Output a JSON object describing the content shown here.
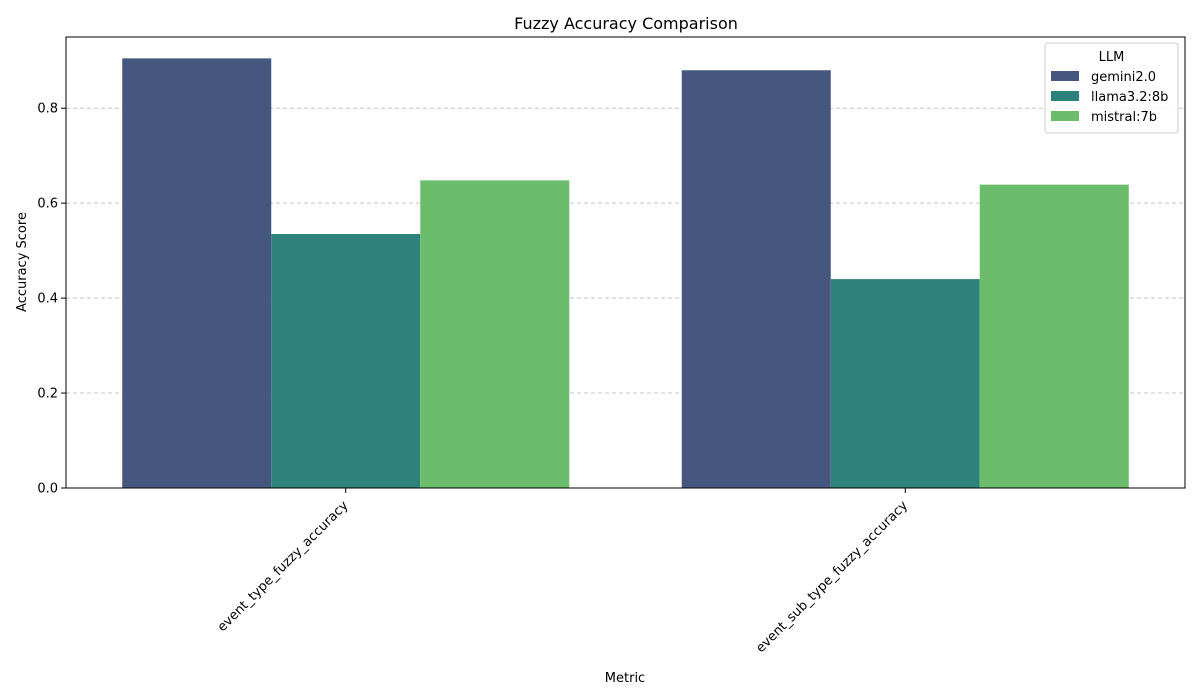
{
  "chart_data": {
    "type": "bar",
    "title": "Fuzzy Accuracy Comparison",
    "xlabel": "Metric",
    "ylabel": "Accuracy Score",
    "categories": [
      "event_type_fuzzy_accuracy",
      "event_sub_type_fuzzy_accuracy"
    ],
    "series": [
      {
        "name": "gemini2.0",
        "values": [
          0.905,
          0.88
        ],
        "color": "#46577f"
      },
      {
        "name": "llama3.2:8b",
        "values": [
          0.535,
          0.44
        ],
        "color": "#2e827c"
      },
      {
        "name": "mistral:7b",
        "values": [
          0.648,
          0.639
        ],
        "color": "#6bbd6b"
      }
    ],
    "ylim": [
      0,
      0.95
    ],
    "yticks": [
      "0.0",
      "0.2",
      "0.4",
      "0.6",
      "0.8"
    ],
    "grid": "y-dashed",
    "legend": {
      "title": "LLM",
      "placement": "top-right"
    }
  }
}
